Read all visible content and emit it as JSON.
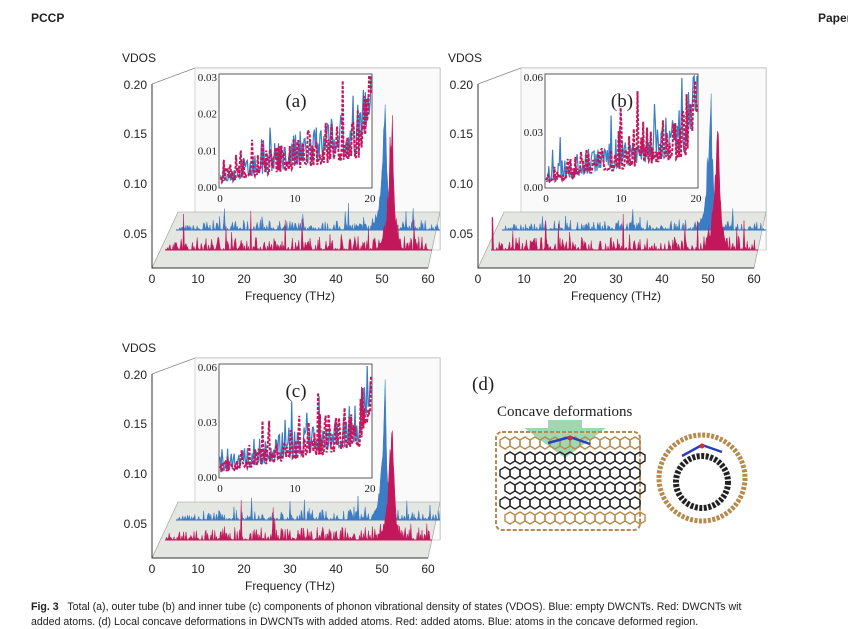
{
  "header": {
    "journal": "PCCP",
    "section": "Paper"
  },
  "colors": {
    "empty_dwcnt": "#3b7cc4",
    "dwcnt_added_atoms": "#c2185b",
    "arrow": "#9fd8b0"
  },
  "chart_data": [
    {
      "type": "area",
      "panel_label": "(a)",
      "ylabel": "VDOS",
      "xlabel": "Frequency (THz)",
      "xlim": [
        0,
        60
      ],
      "ylim": [
        0,
        0.2
      ],
      "xticks": [
        "0",
        "10",
        "20",
        "30",
        "40",
        "50",
        "60"
      ],
      "yticks": [
        "0.05",
        "0.10",
        "0.15",
        "0.20"
      ],
      "series": [
        {
          "color": "#3b7cc4"
        },
        {
          "color": "#c2185b"
        }
      ],
      "peak_frequency_thz": 50,
      "inset": {
        "xlim": [
          0,
          20
        ],
        "ylim": [
          0,
          0.03
        ],
        "xticks": [
          "0",
          "10",
          "20"
        ],
        "yticks": [
          "0.00",
          "0.01",
          "0.02",
          "0.03"
        ]
      }
    },
    {
      "type": "area",
      "panel_label": "(b)",
      "ylabel": "VDOS",
      "xlabel": "Frequency (THz)",
      "xlim": [
        0,
        60
      ],
      "ylim": [
        0,
        0.2
      ],
      "xticks": [
        "0",
        "10",
        "20",
        "30",
        "40",
        "50",
        "60"
      ],
      "yticks": [
        "0.05",
        "0.10",
        "0.15",
        "0.20"
      ],
      "series": [
        {
          "color": "#3b7cc4"
        },
        {
          "color": "#c2185b"
        }
      ],
      "peak_frequency_thz": 50,
      "inset": {
        "xlim": [
          0,
          20
        ],
        "ylim": [
          0,
          0.06
        ],
        "xticks": [
          "0",
          "10",
          "20"
        ],
        "yticks": [
          "0.00",
          "0.03",
          "0.06"
        ]
      }
    },
    {
      "type": "area",
      "panel_label": "(c)",
      "ylabel": "VDOS",
      "xlabel": "Frequency (THz)",
      "xlim": [
        0,
        60
      ],
      "ylim": [
        0,
        0.2
      ],
      "xticks": [
        "0",
        "10",
        "20",
        "30",
        "40",
        "50",
        "60"
      ],
      "yticks": [
        "0.05",
        "0.10",
        "0.15",
        "0.20"
      ],
      "series": [
        {
          "color": "#3b7cc4"
        },
        {
          "color": "#c2185b"
        }
      ],
      "peak_frequency_thz": 50,
      "inset": {
        "xlim": [
          0,
          20
        ],
        "ylim": [
          0,
          0.06
        ],
        "xticks": [
          "0",
          "10",
          "20"
        ],
        "yticks": [
          "0.00",
          "0.03",
          "0.06"
        ]
      }
    }
  ],
  "panel_d": {
    "label": "(d)",
    "title": "Concave deformations"
  },
  "caption": {
    "fig": "Fig. 3",
    "line1": "Total (a), outer tube (b) and inner tube (c) components of phonon vibrational density of states (VDOS). Blue: empty DWCNTs. Red: DWCNTs wit",
    "line2": "added atoms. (d) Local concave deformations in DWCNTs with added atoms. Red: added atoms. Blue: atoms in the concave deformed region."
  }
}
